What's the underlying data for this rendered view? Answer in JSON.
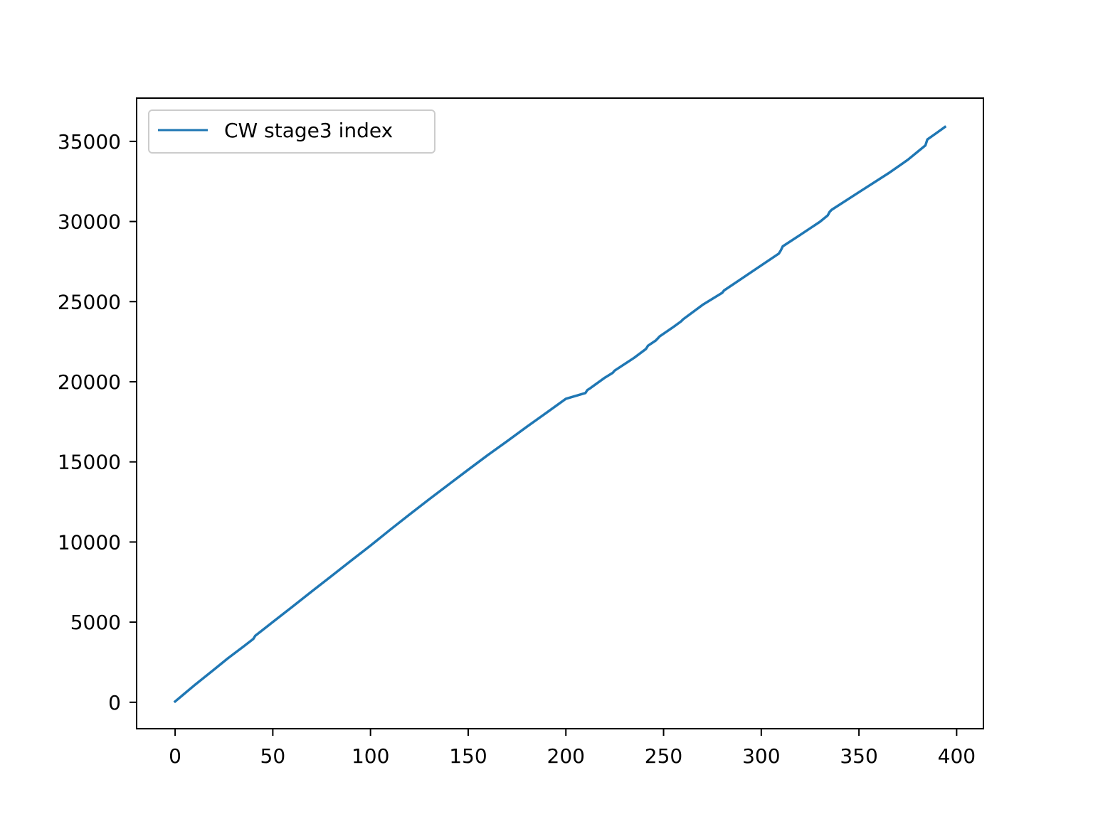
{
  "chart_data": {
    "type": "line",
    "title": "",
    "xlabel": "",
    "ylabel": "",
    "xlim": [
      -19.7,
      413.7
    ],
    "ylim": [
      -1650,
      37700
    ],
    "x_ticks": [
      0,
      50,
      100,
      150,
      200,
      250,
      300,
      350,
      400
    ],
    "y_ticks": [
      0,
      5000,
      10000,
      15000,
      20000,
      25000,
      30000,
      35000
    ],
    "x_tick_labels": [
      "0",
      "50",
      "100",
      "150",
      "200",
      "250",
      "300",
      "350",
      "400"
    ],
    "y_tick_labels": [
      "0",
      "5000",
      "10000",
      "15000",
      "20000",
      "25000",
      "30000",
      "35000"
    ],
    "grid": false,
    "legend_position": "upper-left",
    "series": [
      {
        "name": "CW stage3 index",
        "color": "#1f77b4",
        "x": [
          0,
          10,
          20,
          27,
          35,
          40,
          41,
          50,
          60,
          70,
          80,
          90,
          100,
          110,
          120,
          130,
          140,
          150,
          160,
          170,
          180,
          190,
          200,
          210,
          211,
          212,
          220,
          224,
          225,
          235,
          241,
          242,
          246,
          247,
          248,
          255,
          259,
          260,
          270,
          280,
          281,
          290,
          300,
          309,
          310,
          311,
          320,
          330,
          334,
          335,
          336,
          350,
          365,
          375,
          384,
          385,
          390,
          394
        ],
        "y": [
          50,
          1070,
          2050,
          2740,
          3480,
          3950,
          4150,
          5010,
          5960,
          6920,
          7870,
          8830,
          9780,
          10760,
          11720,
          12660,
          13590,
          14510,
          15420,
          16300,
          17190,
          18060,
          18940,
          19300,
          19480,
          19560,
          20260,
          20560,
          20700,
          21500,
          22050,
          22250,
          22570,
          22700,
          22830,
          23420,
          23770,
          23900,
          24800,
          25550,
          25700,
          26440,
          27260,
          28000,
          28200,
          28450,
          29170,
          29980,
          30380,
          30600,
          30730,
          31830,
          33000,
          33850,
          34750,
          35120,
          35550,
          35900
        ]
      }
    ]
  }
}
